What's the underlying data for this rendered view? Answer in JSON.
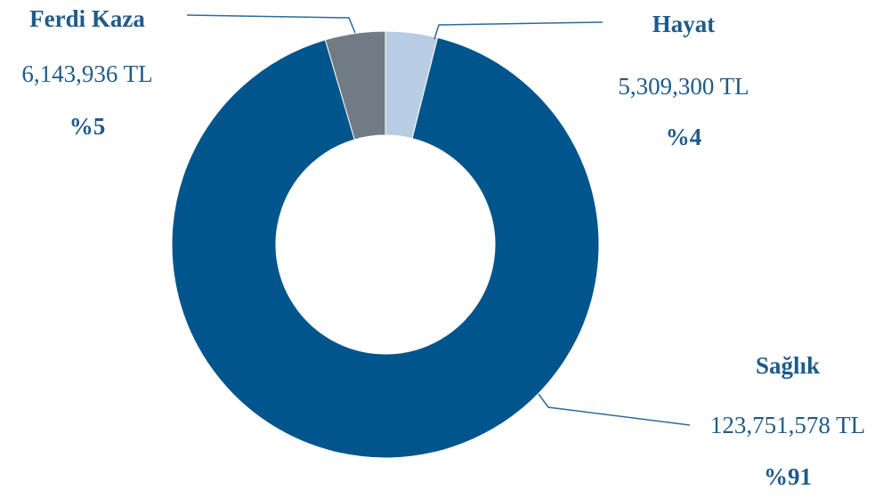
{
  "chart_data": {
    "type": "pie",
    "variant": "donut",
    "slices": [
      {
        "label": "Hayat",
        "value": 5309300,
        "value_text": "5,309,300 TL",
        "percent_text": "%4",
        "color": "#b8cce4"
      },
      {
        "label": "Sağlık",
        "value": 123751578,
        "value_text": "123,751,578 TL",
        "percent_text": "%91",
        "color": "#00558c"
      },
      {
        "label": "Ferdi Kaza",
        "value": 6143936,
        "value_text": "6,143,936 TL",
        "percent_text": "%5",
        "color": "#707b86"
      }
    ],
    "label_color": "#1f5b8a",
    "value_text_color": "#1f5b8a",
    "leader_line_color": "#2c6a99"
  }
}
